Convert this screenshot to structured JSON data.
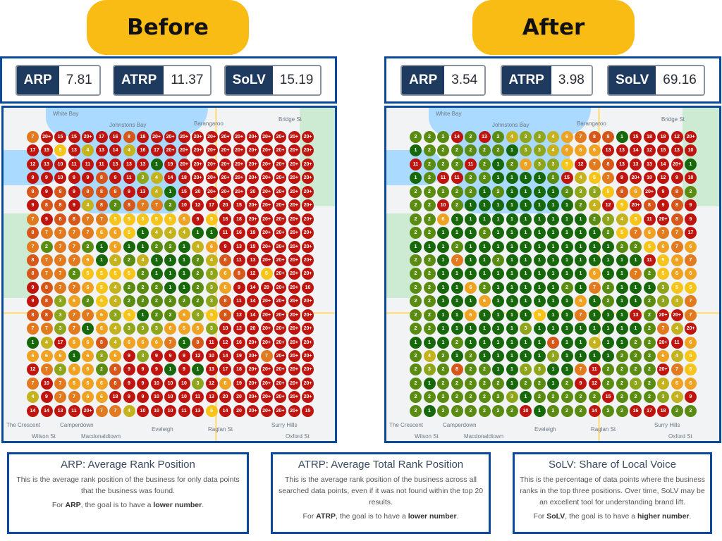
{
  "before": {
    "label": "Before",
    "stats": [
      {
        "key": "ARP",
        "value": "7.81"
      },
      {
        "key": "ATRP",
        "value": "11.37"
      },
      {
        "key": "SoLV",
        "value": "15.19"
      }
    ],
    "grid": [
      [
        "7",
        "20+",
        "15",
        "15",
        "20+",
        "17",
        "16",
        "8",
        "18",
        "20+",
        "20+",
        "20+",
        "20+",
        "20+",
        "20+",
        "20+",
        "20+",
        "20+",
        "20+",
        "20+",
        "20+"
      ],
      [
        "17",
        "15",
        "5",
        "13",
        "4",
        "13",
        "14",
        "4",
        "16",
        "17",
        "20+",
        "20+",
        "20+",
        "20+",
        "20+",
        "20+",
        "20+",
        "20+",
        "20+",
        "20+",
        "20+"
      ],
      [
        "12",
        "13",
        "10",
        "11",
        "11",
        "11",
        "13",
        "13",
        "13",
        "1",
        "19",
        "20+",
        "20+",
        "20+",
        "20+",
        "20+",
        "20+",
        "20+",
        "20+",
        "20+",
        "20+"
      ],
      [
        "9",
        "9",
        "10",
        "9",
        "9",
        "8",
        "9",
        "11",
        "3",
        "4",
        "14",
        "18",
        "20+",
        "20+",
        "20+",
        "20+",
        "20+",
        "20+",
        "20+",
        "20+",
        "20+"
      ],
      [
        "8",
        "9",
        "8",
        "9",
        "8",
        "8",
        "8",
        "9",
        "13",
        "4",
        "1",
        "15",
        "20",
        "20+",
        "20+",
        "20+",
        "20",
        "20+",
        "20+",
        "20+",
        "20+"
      ],
      [
        "9",
        "8",
        "8",
        "9",
        "4",
        "8",
        "2",
        "8",
        "7",
        "7",
        "2",
        "10",
        "12",
        "17",
        "20",
        "15",
        "20+",
        "20+",
        "20+",
        "20+",
        "20+"
      ],
      [
        "7",
        "9",
        "8",
        "8",
        "7",
        "7",
        "5",
        "5",
        "5",
        "5",
        "5",
        "6",
        "9",
        "5",
        "16",
        "18",
        "20+",
        "20+",
        "20+",
        "20+",
        "20+"
      ],
      [
        "8",
        "7",
        "7",
        "7",
        "7",
        "6",
        "6",
        "5",
        "1",
        "4",
        "4",
        "4",
        "1",
        "1",
        "11",
        "16",
        "19",
        "20+",
        "20+",
        "20+",
        "20+"
      ],
      [
        "7",
        "2",
        "7",
        "7",
        "2",
        "1",
        "6",
        "1",
        "1",
        "2",
        "2",
        "1",
        "4",
        "6",
        "9",
        "13",
        "15",
        "20+",
        "20+",
        "20+",
        "20+"
      ],
      [
        "8",
        "7",
        "7",
        "7",
        "6",
        "1",
        "4",
        "2",
        "4",
        "1",
        "1",
        "1",
        "2",
        "4",
        "8",
        "11",
        "13",
        "20+",
        "20+",
        "20+",
        "20+"
      ],
      [
        "8",
        "7",
        "7",
        "2",
        "5",
        "5",
        "5",
        "5",
        "2",
        "1",
        "1",
        "1",
        "2",
        "3",
        "6",
        "8",
        "12",
        "5",
        "20+",
        "20+",
        "20+"
      ],
      [
        "9",
        "8",
        "7",
        "7",
        "6",
        "5",
        "4",
        "2",
        "2",
        "2",
        "1",
        "1",
        "2",
        "3",
        "6",
        "9",
        "14",
        "20",
        "20+",
        "20+",
        "10"
      ],
      [
        "9",
        "8",
        "3",
        "6",
        "2",
        "5",
        "4",
        "2",
        "2",
        "2",
        "2",
        "2",
        "2",
        "3",
        "8",
        "11",
        "14",
        "20+",
        "20+",
        "20+",
        "20+"
      ],
      [
        "8",
        "8",
        "3",
        "7",
        "7",
        "6",
        "3",
        "5",
        "1",
        "2",
        "2",
        "6",
        "3",
        "5",
        "8",
        "12",
        "14",
        "20+",
        "20+",
        "20+",
        "20+"
      ],
      [
        "7",
        "7",
        "3",
        "7",
        "1",
        "6",
        "4",
        "3",
        "3",
        "3",
        "6",
        "6",
        "6",
        "3",
        "10",
        "12",
        "20",
        "20+",
        "20+",
        "20+",
        "20+"
      ],
      [
        "1",
        "4",
        "17",
        "6",
        "6",
        "8",
        "4",
        "6",
        "6",
        "6",
        "7",
        "1",
        "8",
        "11",
        "12",
        "16",
        "20+",
        "20+",
        "20+",
        "20+",
        "20+"
      ],
      [
        "6",
        "6",
        "6",
        "1",
        "6",
        "3",
        "6",
        "9",
        "3",
        "9",
        "9",
        "9",
        "12",
        "10",
        "14",
        "19",
        "20+",
        "7",
        "20+",
        "20+",
        "20+"
      ],
      [
        "12",
        "7",
        "3",
        "6",
        "6",
        "2",
        "8",
        "9",
        "9",
        "9",
        "1",
        "9",
        "1",
        "13",
        "17",
        "18",
        "20+",
        "20+",
        "20+",
        "20+",
        "20+"
      ],
      [
        "7",
        "10",
        "7",
        "6",
        "6",
        "6",
        "8",
        "9",
        "9",
        "10",
        "10",
        "10",
        "3",
        "12",
        "6",
        "19",
        "20+",
        "20+",
        "20+",
        "20+",
        "20+"
      ],
      [
        "4",
        "9",
        "7",
        "7",
        "6",
        "6",
        "18",
        "9",
        "9",
        "10",
        "10",
        "10",
        "11",
        "13",
        "20",
        "20",
        "20+",
        "20+",
        "20+",
        "20+",
        "20+"
      ],
      [
        "14",
        "14",
        "13",
        "11",
        "20+",
        "7",
        "7",
        "4",
        "10",
        "10",
        "10",
        "11",
        "13",
        "5",
        "14",
        "20",
        "20+",
        "20+",
        "20+",
        "20+",
        "15"
      ]
    ]
  },
  "after": {
    "label": "After",
    "stats": [
      {
        "key": "ARP",
        "value": "3.54"
      },
      {
        "key": "ATRP",
        "value": "3.98"
      },
      {
        "key": "SoLV",
        "value": "69.16"
      }
    ],
    "grid": [
      [
        "2",
        "2",
        "2",
        "14",
        "2",
        "13",
        "2",
        "4",
        "3",
        "3",
        "4",
        "6",
        "7",
        "8",
        "8",
        "1",
        "15",
        "18",
        "18",
        "12",
        "20+"
      ],
      [
        "1",
        "2",
        "2",
        "2",
        "2",
        "2",
        "2",
        "1",
        "3",
        "3",
        "4",
        "6",
        "6",
        "6",
        "13",
        "13",
        "14",
        "12",
        "15",
        "13",
        "10"
      ],
      [
        "11",
        "2",
        "2",
        "2",
        "11",
        "2",
        "1",
        "2",
        "6",
        "3",
        "3",
        "5",
        "12",
        "7",
        "8",
        "13",
        "13",
        "13",
        "14",
        "20+",
        "1"
      ],
      [
        "1",
        "2",
        "11",
        "11",
        "2",
        "2",
        "1",
        "1",
        "1",
        "1",
        "2",
        "15",
        "4",
        "5",
        "7",
        "9",
        "20+",
        "10",
        "12",
        "9",
        "10"
      ],
      [
        "2",
        "2",
        "2",
        "2",
        "2",
        "1",
        "2",
        "1",
        "1",
        "1",
        "1",
        "2",
        "3",
        "3",
        "5",
        "8",
        "6",
        "20+",
        "9",
        "8",
        "2"
      ],
      [
        "2",
        "2",
        "10",
        "2",
        "1",
        "1",
        "1",
        "1",
        "1",
        "1",
        "1",
        "1",
        "2",
        "4",
        "12",
        "5",
        "20+",
        "8",
        "9",
        "8",
        "9"
      ],
      [
        "2",
        "2",
        "6",
        "1",
        "1",
        "1",
        "1",
        "1",
        "1",
        "1",
        "1",
        "1",
        "1",
        "2",
        "3",
        "4",
        "5",
        "11",
        "20+",
        "8",
        "9"
      ],
      [
        "2",
        "2",
        "1",
        "1",
        "1",
        "2",
        "1",
        "1",
        "1",
        "1",
        "1",
        "1",
        "1",
        "1",
        "2",
        "5",
        "7",
        "6",
        "7",
        "7",
        "17"
      ],
      [
        "1",
        "1",
        "1",
        "2",
        "1",
        "1",
        "1",
        "1",
        "1",
        "1",
        "1",
        "1",
        "1",
        "1",
        "1",
        "2",
        "2",
        "5",
        "6",
        "7",
        "6"
      ],
      [
        "2",
        "2",
        "1",
        "7",
        "1",
        "1",
        "2",
        "1",
        "1",
        "1",
        "1",
        "1",
        "1",
        "1",
        "1",
        "1",
        "1",
        "11",
        "5",
        "6",
        "7"
      ],
      [
        "2",
        "2",
        "1",
        "1",
        "1",
        "1",
        "1",
        "1",
        "1",
        "1",
        "1",
        "1",
        "1",
        "6",
        "1",
        "1",
        "7",
        "2",
        "5",
        "6",
        "6"
      ],
      [
        "2",
        "2",
        "1",
        "1",
        "6",
        "2",
        "1",
        "1",
        "1",
        "1",
        "1",
        "2",
        "1",
        "7",
        "2",
        "1",
        "1",
        "1",
        "3",
        "5",
        "5"
      ],
      [
        "2",
        "2",
        "1",
        "1",
        "1",
        "6",
        "1",
        "1",
        "1",
        "1",
        "1",
        "1",
        "6",
        "1",
        "2",
        "1",
        "1",
        "2",
        "3",
        "4",
        "7"
      ],
      [
        "2",
        "2",
        "1",
        "1",
        "6",
        "1",
        "1",
        "1",
        "1",
        "5",
        "1",
        "1",
        "7",
        "1",
        "1",
        "1",
        "13",
        "2",
        "20+",
        "20+",
        "7"
      ],
      [
        "2",
        "2",
        "1",
        "1",
        "1",
        "1",
        "1",
        "1",
        "3",
        "1",
        "1",
        "1",
        "1",
        "1",
        "1",
        "1",
        "1",
        "2",
        "7",
        "4",
        "20+"
      ],
      [
        "1",
        "1",
        "1",
        "2",
        "1",
        "1",
        "1",
        "1",
        "1",
        "1",
        "8",
        "1",
        "1",
        "4",
        "1",
        "1",
        "2",
        "2",
        "20+",
        "11",
        "6"
      ],
      [
        "2",
        "4",
        "2",
        "1",
        "2",
        "1",
        "1",
        "1",
        "1",
        "1",
        "3",
        "1",
        "1",
        "1",
        "1",
        "2",
        "2",
        "2",
        "6",
        "4",
        "5"
      ],
      [
        "2",
        "3",
        "2",
        "8",
        "2",
        "2",
        "1",
        "1",
        "3",
        "3",
        "1",
        "1",
        "7",
        "11",
        "2",
        "2",
        "2",
        "2",
        "20+",
        "7",
        "5"
      ],
      [
        "2",
        "1",
        "2",
        "2",
        "2",
        "2",
        "2",
        "1",
        "2",
        "2",
        "1",
        "2",
        "9",
        "12",
        "2",
        "2",
        "3",
        "2",
        "4",
        "6",
        "6"
      ],
      [
        "2",
        "2",
        "2",
        "2",
        "2",
        "2",
        "2",
        "3",
        "1",
        "2",
        "2",
        "2",
        "2",
        "2",
        "15",
        "2",
        "2",
        "2",
        "3",
        "4",
        "9"
      ],
      [
        "2",
        "1",
        "2",
        "2",
        "2",
        "2",
        "2",
        "2",
        "10",
        "1",
        "2",
        "2",
        "2",
        "14",
        "2",
        "2",
        "16",
        "17",
        "18",
        "2",
        "2"
      ]
    ]
  },
  "map_labels": [
    "White Bay",
    "Johnstons Bay",
    "Barangaroo",
    "Bridge St",
    "The Crescent",
    "Camperdown",
    "Eveleigh",
    "Macdonaldtown",
    "Wilson St",
    "Raglan St",
    "Surry Hills",
    "Oxford St"
  ],
  "rank_colors": {
    "1": "#17680b",
    "2": "#5b8c12",
    "3": "#8fa51c",
    "4": "#c4b31d",
    "5": "#f7c51a",
    "6": "#f0a322",
    "7": "#e27a1f",
    "8": "#d65719",
    "9plus": "#c0150f"
  },
  "info": [
    {
      "title": "ARP: Average Rank Position",
      "body": "This is the average rank position of the business for only data points that the business was found.",
      "goal_pre": "For ",
      "goal_metric": "ARP",
      "goal_mid": ", the goal is to have a ",
      "goal_target": "lower number",
      "goal_end": "."
    },
    {
      "title": "ATRP: Average Total Rank Position",
      "body": "This is the average rank position of the business across all searched data points, even if it was not found within the top 20 results.",
      "goal_pre": "For ",
      "goal_metric": "ATRP",
      "goal_mid": ", the goal is to have a ",
      "goal_target": "lower number",
      "goal_end": "."
    },
    {
      "title": "SoLV: Share of Local Voice",
      "body": "This is the percentage of data points where the business ranks in the top three positions. Over time, SoLV may be an excellent tool for understanding brand lift.",
      "goal_pre": "For ",
      "goal_metric": "SoLV",
      "goal_mid": ", the goal is to have a ",
      "goal_target": "higher number",
      "goal_end": "."
    }
  ]
}
